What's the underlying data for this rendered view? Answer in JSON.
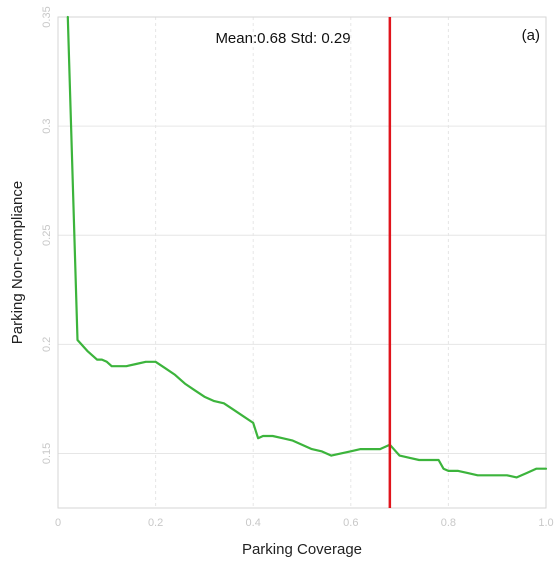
{
  "chart_data": {
    "type": "line",
    "panel_label": "(a)",
    "xlabel": "Parking Coverage",
    "ylabel": "Parking Non-compliance",
    "xlim": [
      0,
      1.0
    ],
    "ylim": [
      0.125,
      0.35
    ],
    "x_ticks": [
      0,
      0.2,
      0.4,
      0.6,
      0.8,
      1.0
    ],
    "x_tick_labels": [
      "0",
      "0.2",
      "0.4",
      "0.6",
      "0.8",
      "1.0"
    ],
    "y_ticks": [
      0.15,
      0.2,
      0.25,
      0.3,
      0.35
    ],
    "y_tick_labels": [
      "0.15",
      "0.2",
      "0.25",
      "0.3",
      "0.35"
    ],
    "grid": true,
    "annotation": "Mean:0.68 Std: 0.29",
    "vline": {
      "x": 0.68,
      "color": "#e0141c"
    },
    "series": [
      {
        "color": "#3cb43c",
        "x": [
          0.02,
          0.04,
          0.06,
          0.08,
          0.09,
          0.1,
          0.11,
          0.12,
          0.14,
          0.16,
          0.18,
          0.2,
          0.22,
          0.24,
          0.26,
          0.28,
          0.3,
          0.32,
          0.34,
          0.36,
          0.38,
          0.4,
          0.41,
          0.42,
          0.44,
          0.46,
          0.48,
          0.5,
          0.52,
          0.54,
          0.56,
          0.58,
          0.6,
          0.62,
          0.64,
          0.66,
          0.68,
          0.7,
          0.72,
          0.74,
          0.76,
          0.78,
          0.79,
          0.8,
          0.82,
          0.84,
          0.86,
          0.88,
          0.9,
          0.92,
          0.94,
          0.96,
          0.98,
          1.0
        ],
        "y": [
          0.35,
          0.202,
          0.197,
          0.193,
          0.193,
          0.192,
          0.19,
          0.19,
          0.19,
          0.191,
          0.192,
          0.192,
          0.189,
          0.186,
          0.182,
          0.179,
          0.176,
          0.174,
          0.173,
          0.17,
          0.167,
          0.164,
          0.157,
          0.158,
          0.158,
          0.157,
          0.156,
          0.154,
          0.152,
          0.151,
          0.149,
          0.15,
          0.151,
          0.152,
          0.152,
          0.152,
          0.154,
          0.149,
          0.148,
          0.147,
          0.147,
          0.147,
          0.143,
          0.142,
          0.142,
          0.141,
          0.14,
          0.14,
          0.14,
          0.14,
          0.139,
          0.141,
          0.143,
          0.143
        ]
      }
    ]
  }
}
